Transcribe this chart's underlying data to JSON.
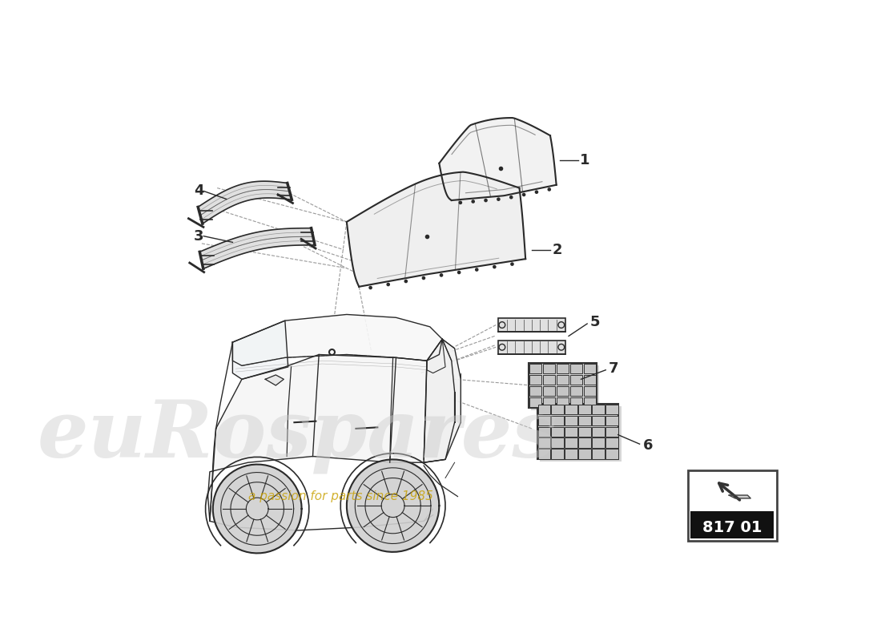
{
  "bg_color": "#ffffff",
  "line_color": "#2a2a2a",
  "dashed_color": "#999999",
  "diagram_code": "817 01",
  "watermark_text": "euRospares",
  "watermark_sub": "a passion for parts since 1985"
}
